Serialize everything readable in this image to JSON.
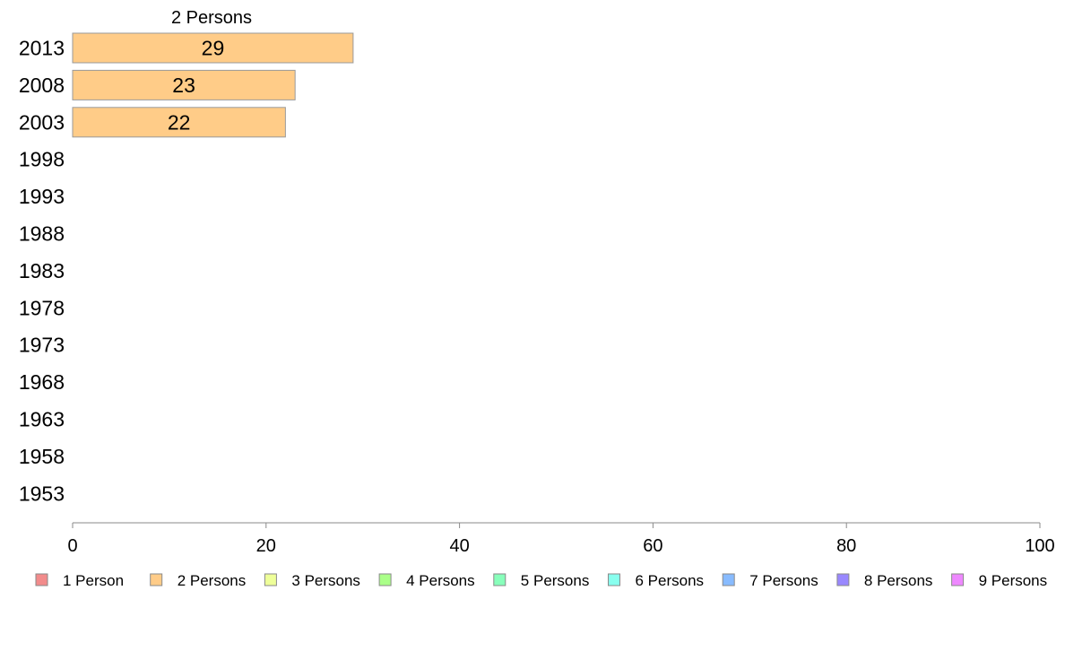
{
  "chart_data": {
    "type": "bar",
    "orientation": "horizontal",
    "stacked": true,
    "title": "",
    "xlabel": "",
    "ylabel": "",
    "xlim": [
      0,
      100
    ],
    "x_ticks": [
      "0",
      "20",
      "40",
      "60",
      "80",
      "100"
    ],
    "categories": [
      "2013",
      "2008",
      "2003",
      "1998",
      "1993",
      "1988",
      "1983",
      "1978",
      "1973",
      "1968",
      "1963",
      "1958",
      "1953"
    ],
    "series": [
      {
        "name": "1 Person",
        "color": "#f28b8b",
        "values": [
          null,
          null,
          null,
          null,
          null,
          null,
          null,
          null,
          null,
          null,
          null,
          null,
          null
        ]
      },
      {
        "name": "2 Persons",
        "color": "#ffcc88",
        "values": [
          29,
          23,
          22,
          null,
          null,
          null,
          null,
          null,
          null,
          null,
          null,
          null,
          null
        ]
      },
      {
        "name": "3 Persons",
        "color": "#eeff99",
        "values": [
          null,
          null,
          null,
          null,
          null,
          null,
          null,
          null,
          null,
          null,
          null,
          null,
          null
        ]
      },
      {
        "name": "4 Persons",
        "color": "#aaff88",
        "values": [
          null,
          null,
          null,
          null,
          null,
          null,
          null,
          null,
          null,
          null,
          null,
          null,
          null
        ]
      },
      {
        "name": "5 Persons",
        "color": "#88ffbb",
        "values": [
          null,
          null,
          null,
          null,
          null,
          null,
          null,
          null,
          null,
          null,
          null,
          null,
          null
        ]
      },
      {
        "name": "6 Persons",
        "color": "#88ffee",
        "values": [
          null,
          null,
          null,
          null,
          null,
          null,
          null,
          null,
          null,
          null,
          null,
          null,
          null
        ]
      },
      {
        "name": "7 Persons",
        "color": "#88bbff",
        "values": [
          null,
          null,
          null,
          null,
          null,
          null,
          null,
          null,
          null,
          null,
          null,
          null,
          null
        ]
      },
      {
        "name": "8 Persons",
        "color": "#9988ff",
        "values": [
          null,
          null,
          null,
          null,
          null,
          null,
          null,
          null,
          null,
          null,
          null,
          null,
          null
        ]
      },
      {
        "name": "9 Persons",
        "color": "#ee88ff",
        "values": [
          null,
          null,
          null,
          null,
          null,
          null,
          null,
          null,
          null,
          null,
          null,
          null,
          null
        ]
      }
    ],
    "series_title": "2 Persons",
    "data_labels": true,
    "grid": false,
    "legend_position": "bottom"
  }
}
